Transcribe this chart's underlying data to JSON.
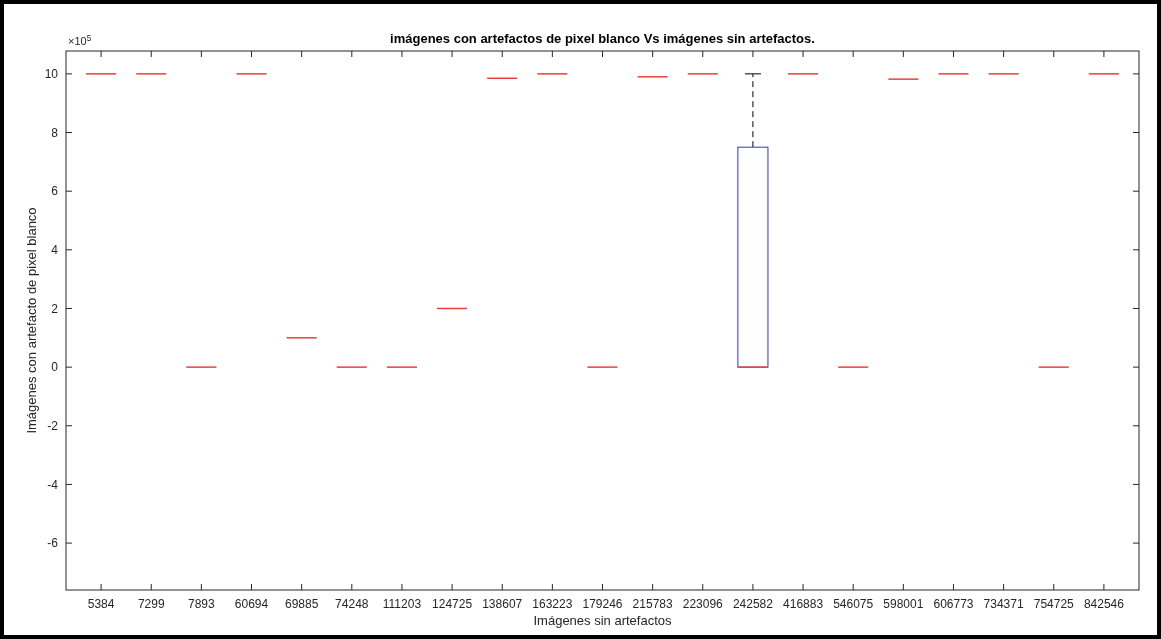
{
  "chart_data": {
    "type": "box",
    "title": "imágenes con artefactos de pixel blanco Vs imágenes sin artefactos.",
    "xlabel": "Imágenes sin artefactos",
    "ylabel": "Imágenes con artefacto de pixel blanco",
    "annotations": [
      "×10$^{5}$"
    ],
    "categories": [
      "5384",
      "7299",
      "7893",
      "60694",
      "69885",
      "74248",
      "111203",
      "124725",
      "138607",
      "163223",
      "179246",
      "215783",
      "223096",
      "242582",
      "416883",
      "546075",
      "598001",
      "606773",
      "734371",
      "754725",
      "842546"
    ],
    "boxes": [
      {
        "low": 10,
        "q1": 10,
        "median": 10,
        "q3": 10,
        "high": 10
      },
      {
        "low": 10,
        "q1": 10,
        "median": 10,
        "q3": 10,
        "high": 10
      },
      {
        "low": 0,
        "q1": 0,
        "median": 0,
        "q3": 0,
        "high": 0
      },
      {
        "low": 10,
        "q1": 10,
        "median": 10,
        "q3": 10,
        "high": 10
      },
      {
        "low": 1,
        "q1": 1,
        "median": 1,
        "q3": 1,
        "high": 1
      },
      {
        "low": 0,
        "q1": 0,
        "median": 0,
        "q3": 0,
        "high": 0
      },
      {
        "low": 0,
        "q1": 0,
        "median": 0,
        "q3": 0,
        "high": 0
      },
      {
        "low": 2,
        "q1": 2,
        "median": 2,
        "q3": 2,
        "high": 2
      },
      {
        "low": 9.85,
        "q1": 9.85,
        "median": 9.85,
        "q3": 9.85,
        "high": 9.85
      },
      {
        "low": 10,
        "q1": 10,
        "median": 10,
        "q3": 10,
        "high": 10
      },
      {
        "low": 0,
        "q1": 0,
        "median": 0,
        "q3": 0,
        "high": 0
      },
      {
        "low": 9.9,
        "q1": 9.9,
        "median": 9.9,
        "q3": 9.9,
        "high": 9.9
      },
      {
        "low": 10,
        "q1": 10,
        "median": 10,
        "q3": 10,
        "high": 10
      },
      {
        "low": 0,
        "q1": 0,
        "median": 0,
        "q3": 7.5,
        "high": 10
      },
      {
        "low": 10,
        "q1": 10,
        "median": 10,
        "q3": 10,
        "high": 10
      },
      {
        "low": 0,
        "q1": 0,
        "median": 0,
        "q3": 0,
        "high": 0
      },
      {
        "low": 9.82,
        "q1": 9.82,
        "median": 9.82,
        "q3": 9.82,
        "high": 9.82
      },
      {
        "low": 10,
        "q1": 10,
        "median": 10,
        "q3": 10,
        "high": 10
      },
      {
        "low": 10,
        "q1": 10,
        "median": 10,
        "q3": 10,
        "high": 10
      },
      {
        "low": 0,
        "q1": 0,
        "median": 0,
        "q3": 0,
        "high": 0
      },
      {
        "low": 10,
        "q1": 10,
        "median": 10,
        "q3": 10,
        "high": 10
      }
    ],
    "ylim": [
      -7.6,
      10.78
    ],
    "yticks": [
      -6,
      -4,
      -2,
      0,
      2,
      4,
      6,
      8,
      10
    ]
  }
}
